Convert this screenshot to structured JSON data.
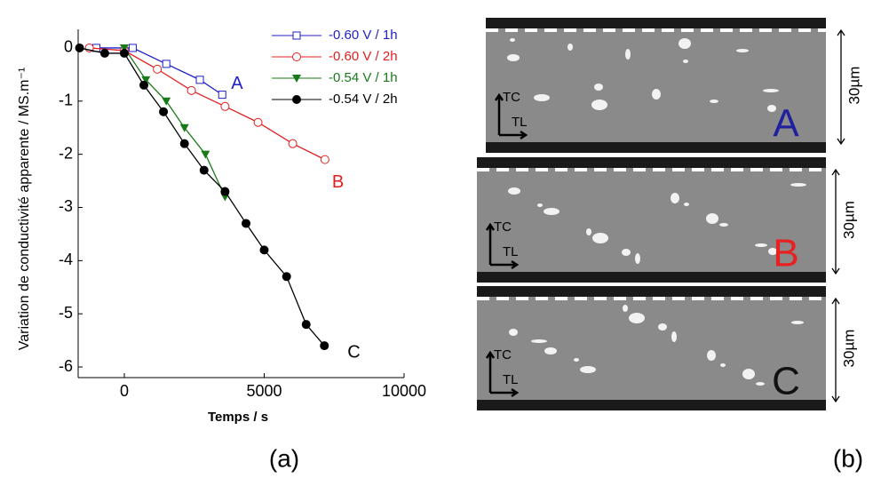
{
  "chart_data": {
    "type": "line",
    "x_label": "Temps / s",
    "y_label": "Variation de conductivité apparente / MS.m⁻¹",
    "xlim": [
      -1650,
      10000
    ],
    "xticks": [
      0,
      5000,
      10000
    ],
    "ylim": [
      -6.2,
      0.35
    ],
    "yticks": [
      0,
      -1,
      -2,
      -3,
      -4,
      -5,
      -6
    ],
    "legend": "upper right",
    "series": [
      {
        "name": "-0.60 V / 1h",
        "color": "#1f1fc8",
        "marker": "square-open",
        "end_label": "A",
        "x": [
          -1000,
          300,
          1500,
          2700,
          3500
        ],
        "values": [
          0,
          0,
          -0.3,
          -0.6,
          -0.88
        ]
      },
      {
        "name": "-0.60 V / 2h",
        "color": "#e02020",
        "marker": "circle-open",
        "end_label": "B",
        "x": [
          -1250,
          0,
          1180,
          2400,
          3600,
          4780,
          6020,
          7170
        ],
        "values": [
          0,
          -0.05,
          -0.4,
          -0.8,
          -1.1,
          -1.4,
          -1.8,
          -2.1
        ]
      },
      {
        "name": "-0.54 V / 1h",
        "color": "#1a7a1a",
        "marker": "triangle-down",
        "end_label": null,
        "x": [
          0,
          770,
          1500,
          2150,
          2900,
          3600
        ],
        "values": [
          0,
          -0.6,
          -1.0,
          -1.5,
          -2.0,
          -2.8
        ]
      },
      {
        "name": "-0.54 V / 2h",
        "color": "#000000",
        "marker": "circle",
        "end_label": "C",
        "x": [
          -1600,
          -700,
          0,
          700,
          1400,
          2150,
          2850,
          3600,
          4350,
          5000,
          5800,
          6500,
          7150
        ],
        "values": [
          0,
          -0.1,
          -0.1,
          -0.7,
          -1.2,
          -1.8,
          -2.3,
          -2.7,
          -3.3,
          -3.8,
          -4.3,
          -5.2,
          -5.6
        ]
      }
    ]
  },
  "panel_labels": [
    "(a)",
    "(b)"
  ],
  "panel_b": {
    "images": [
      {
        "letter": "A",
        "letter_color": "#1f1fa0",
        "axis_up": "TC",
        "axis_right": "TL",
        "scale": "30µm"
      },
      {
        "letter": "B",
        "letter_color": "#e82020",
        "axis_up": "TC",
        "axis_right": "TL",
        "scale": "30µm"
      },
      {
        "letter": "C",
        "letter_color": "#111111",
        "axis_up": "TC",
        "axis_right": "TL",
        "scale": "30µm"
      }
    ]
  }
}
